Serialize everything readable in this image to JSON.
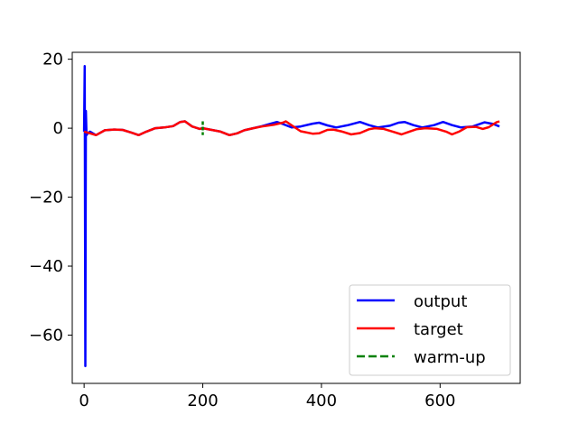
{
  "chart_data": {
    "type": "line",
    "title": "",
    "xlabel": "",
    "ylabel": "",
    "xlim": [
      -20,
      735
    ],
    "ylim": [
      -74,
      22
    ],
    "xticks": [
      0,
      200,
      400,
      600
    ],
    "yticks": [
      20,
      0,
      -20,
      -40,
      -60
    ],
    "tick_labels_x": [
      "0",
      "200",
      "400",
      "600"
    ],
    "tick_labels_y": [
      "20",
      "0",
      "−20",
      "−40",
      "−60"
    ],
    "grid": false,
    "legend_position": "lower-right",
    "series": [
      {
        "name": "output",
        "color": "#0000ff",
        "style": "solid",
        "points": [
          [
            0,
            -1
          ],
          [
            1,
            18
          ],
          [
            2,
            -69
          ],
          [
            3,
            5
          ],
          [
            4,
            -2
          ],
          [
            6,
            -1.5
          ],
          [
            10,
            -1
          ],
          [
            20,
            -2
          ],
          [
            35,
            -0.6
          ],
          [
            50,
            -0.4
          ],
          [
            65,
            -0.5
          ],
          [
            80,
            -1.3
          ],
          [
            92,
            -2
          ],
          [
            105,
            -1
          ],
          [
            120,
            0
          ],
          [
            135,
            0.2
          ],
          [
            150,
            0.6
          ],
          [
            162,
            1.8
          ],
          [
            170,
            2
          ],
          [
            182,
            0.5
          ],
          [
            195,
            -0.2
          ],
          [
            200,
            0
          ],
          [
            215,
            -0.5
          ],
          [
            230,
            -1
          ],
          [
            245,
            -2
          ],
          [
            258,
            -1.5
          ],
          [
            270,
            -0.6
          ],
          [
            285,
            0
          ],
          [
            300,
            0.6
          ],
          [
            318,
            1.5
          ],
          [
            325,
            1.8
          ],
          [
            335,
            1.2
          ],
          [
            350,
            0.2
          ],
          [
            365,
            0.5
          ],
          [
            385,
            1.3
          ],
          [
            396,
            1.6
          ],
          [
            410,
            0.8
          ],
          [
            425,
            0.2
          ],
          [
            445,
            0.9
          ],
          [
            465,
            1.8
          ],
          [
            480,
            0.9
          ],
          [
            495,
            0.2
          ],
          [
            515,
            0.7
          ],
          [
            530,
            1.6
          ],
          [
            540,
            1.8
          ],
          [
            555,
            0.9
          ],
          [
            570,
            0.2
          ],
          [
            590,
            0.9
          ],
          [
            605,
            1.8
          ],
          [
            620,
            0.9
          ],
          [
            635,
            0.2
          ],
          [
            655,
            0.5
          ],
          [
            675,
            1.7
          ],
          [
            690,
            1.2
          ],
          [
            700,
            0.5
          ]
        ]
      },
      {
        "name": "target",
        "color": "#ff0000",
        "style": "solid",
        "points": [
          [
            0,
            -1
          ],
          [
            10,
            -1.5
          ],
          [
            20,
            -2
          ],
          [
            35,
            -0.6
          ],
          [
            50,
            -0.4
          ],
          [
            65,
            -0.5
          ],
          [
            80,
            -1.3
          ],
          [
            92,
            -2
          ],
          [
            105,
            -1
          ],
          [
            120,
            0
          ],
          [
            135,
            0.2
          ],
          [
            150,
            0.6
          ],
          [
            162,
            1.8
          ],
          [
            170,
            2
          ],
          [
            182,
            0.5
          ],
          [
            195,
            -0.2
          ],
          [
            200,
            0
          ],
          [
            215,
            -0.5
          ],
          [
            230,
            -1
          ],
          [
            245,
            -2
          ],
          [
            258,
            -1.5
          ],
          [
            270,
            -0.6
          ],
          [
            285,
            0
          ],
          [
            300,
            0.5
          ],
          [
            320,
            1
          ],
          [
            335,
            1.6
          ],
          [
            340,
            2
          ],
          [
            350,
            0.8
          ],
          [
            365,
            -0.9
          ],
          [
            385,
            -1.6
          ],
          [
            396,
            -1.5
          ],
          [
            410,
            -0.5
          ],
          [
            420,
            -0.4
          ],
          [
            435,
            -1
          ],
          [
            450,
            -1.8
          ],
          [
            465,
            -1.4
          ],
          [
            480,
            -0.3
          ],
          [
            490,
            0
          ],
          [
            505,
            -0.2
          ],
          [
            520,
            -1
          ],
          [
            535,
            -1.8
          ],
          [
            545,
            -1.2
          ],
          [
            560,
            -0.3
          ],
          [
            575,
            0
          ],
          [
            595,
            -0.2
          ],
          [
            610,
            -1
          ],
          [
            620,
            -1.8
          ],
          [
            632,
            -1
          ],
          [
            645,
            0.3
          ],
          [
            660,
            0.4
          ],
          [
            672,
            -0.2
          ],
          [
            682,
            0.3
          ],
          [
            695,
            1.7
          ],
          [
            700,
            2
          ]
        ]
      },
      {
        "name": "warm-up",
        "color": "#008000",
        "style": "dashed",
        "points": [
          [
            200,
            2
          ],
          [
            200,
            -2
          ]
        ]
      }
    ]
  }
}
